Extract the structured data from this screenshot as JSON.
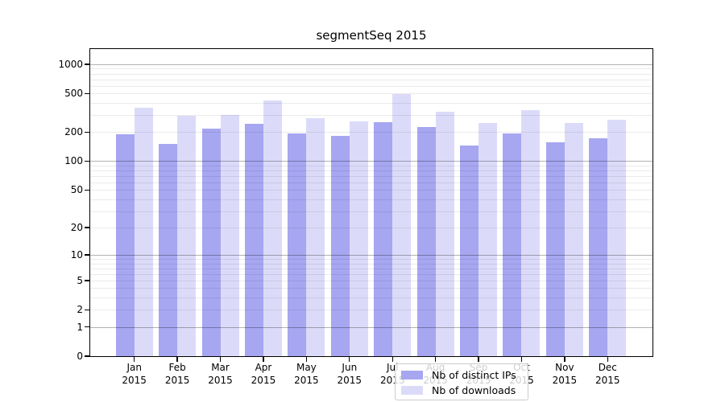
{
  "title": "segmentSeq 2015",
  "colors": {
    "bar_ips": "#a6a6f1",
    "bar_downloads": "#dbdbf9",
    "grid_major": "rgba(0,0,0,0.30)",
    "grid_minor": "rgba(0,0,0,0.08)",
    "spine": "#000000",
    "legend_border": "#cccccc",
    "legend_bg": "rgba(255,255,255,0.8)",
    "text": "#000000"
  },
  "legend": {
    "items": [
      {
        "label": "Nb of distinct IPs",
        "color_key": "bar_ips"
      },
      {
        "label": "Nb of downloads",
        "color_key": "bar_downloads"
      }
    ]
  },
  "chart_data": {
    "type": "bar",
    "title": "segmentSeq 2015",
    "categories": [
      "Jan 2015",
      "Feb 2015",
      "Mar 2015",
      "Apr 2015",
      "May 2015",
      "Jun 2015",
      "Jul 2015",
      "Aug 2015",
      "Sep 2015",
      "Oct 2015",
      "Nov 2015",
      "Dec 2015"
    ],
    "series": [
      {
        "name": "Nb of distinct IPs",
        "key": "ips",
        "values": [
          189,
          151,
          216,
          242,
          193,
          183,
          255,
          226,
          145,
          192,
          158,
          173
        ]
      },
      {
        "name": "Nb of downloads",
        "key": "downloads",
        "values": [
          360,
          293,
          298,
          422,
          277,
          260,
          495,
          322,
          250,
          340,
          250,
          266
        ]
      }
    ],
    "xlabel": "",
    "ylabel": "",
    "yscale": "log1p",
    "ylim": [
      0,
      1400
    ],
    "yticks": [
      0,
      1,
      2,
      5,
      10,
      20,
      50,
      100,
      200,
      500,
      1000
    ],
    "grid": "both",
    "grid_major_values": [
      1,
      10,
      100,
      1000
    ],
    "grid_minor_values": [
      2,
      3,
      4,
      5,
      6,
      7,
      8,
      9,
      20,
      30,
      40,
      50,
      60,
      70,
      80,
      90,
      200,
      300,
      400,
      500,
      600,
      700,
      800,
      900
    ],
    "legend_position": "lower center"
  }
}
